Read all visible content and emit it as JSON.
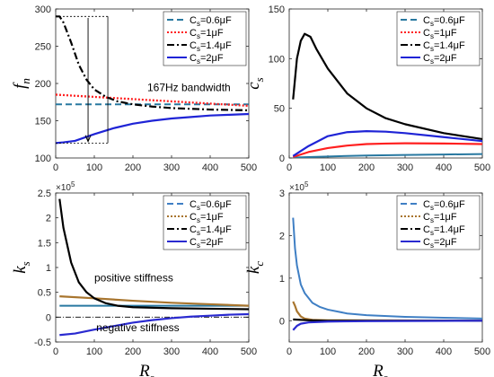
{
  "legend": [
    {
      "base": "C",
      "sub": "s",
      "mid": "=0.6",
      "greek": "μ",
      "unit_suffix": "F",
      "unit_base": "=0.6",
      "plain": true
    },
    {
      "base": "C",
      "sub": "s",
      "mid": "=1",
      "greek": "μ",
      "unit_suffix": "F"
    },
    {
      "base": "C",
      "sub": "s",
      "mid": "=1.4",
      "greek": "μ",
      "unit_suffix": "F"
    },
    {
      "base": "C",
      "sub": "s",
      "mid": "=2",
      "greek": "μ",
      "unit_suffix": "F"
    }
  ],
  "colors": {
    "s06_a": "#2878a0",
    "s1_a": "#ff2020",
    "s14": "#000000",
    "s2": "#1f24d6",
    "s06_c": "#3f7fc4",
    "s1_c": "#a8752e",
    "s2_c_bottom": "#2a2ad0"
  },
  "chart_data": [
    {
      "type": "line",
      "id": "fn",
      "ylabel": "f",
      "ylabel_sub": "n",
      "xlabel": "",
      "xlim": [
        0,
        500
      ],
      "ylim": [
        100,
        300
      ],
      "xticks": [
        0,
        100,
        200,
        300,
        400,
        500
      ],
      "yticks": [
        100,
        150,
        200,
        250,
        300
      ],
      "legend_placement": "top-right",
      "annotation": "167Hz bandwidth",
      "series": [
        {
          "name": "Cs=0.6μF",
          "style": "dash",
          "x": [
            0,
            500
          ],
          "y": [
            172,
            172
          ]
        },
        {
          "name": "Cs=1μF",
          "style": "dot",
          "x": [
            0,
            100,
            200,
            300,
            400,
            500
          ],
          "y": [
            185,
            182,
            179,
            176,
            173,
            170
          ]
        },
        {
          "name": "Cs=1.4μF",
          "style": "dashdot",
          "x": [
            0,
            10,
            20,
            40,
            60,
            80,
            100,
            130,
            160,
            200,
            250,
            300,
            400,
            500
          ],
          "y": [
            290,
            290,
            282,
            255,
            225,
            205,
            192,
            182,
            176,
            172,
            169,
            167,
            165,
            164
          ]
        },
        {
          "name": "Cs=2μF",
          "style": "solid",
          "x": [
            0,
            20,
            50,
            100,
            150,
            200,
            250,
            300,
            350,
            400,
            450,
            500
          ],
          "y": [
            120,
            121,
            123,
            132,
            140,
            146,
            150,
            153,
            155,
            157,
            158,
            159
          ]
        }
      ]
    },
    {
      "type": "line",
      "id": "cs",
      "ylabel": "c",
      "ylabel_sub": "s",
      "xlabel": "",
      "xlim": [
        0,
        500
      ],
      "ylim": [
        0,
        150
      ],
      "xticks": [
        0,
        100,
        200,
        300,
        400,
        500
      ],
      "yticks": [
        0,
        50,
        100,
        150
      ],
      "legend_placement": "top-right",
      "series": [
        {
          "name": "Cs=0.6μF",
          "x": [
            10,
            100,
            200,
            300,
            400,
            500
          ],
          "y": [
            0.5,
            1.5,
            2.5,
            3,
            3.5,
            4
          ]
        },
        {
          "name": "Cs=1μF",
          "x": [
            10,
            50,
            100,
            150,
            200,
            250,
            300,
            400,
            500
          ],
          "y": [
            1,
            6,
            10,
            12.5,
            14,
            14.5,
            14.8,
            14.6,
            14
          ]
        },
        {
          "name": "Cs=1.4μF",
          "x": [
            10,
            20,
            30,
            40,
            55,
            70,
            100,
            150,
            200,
            250,
            300,
            400,
            500
          ],
          "y": [
            59,
            100,
            118,
            125,
            122,
            110,
            90,
            65,
            50,
            40,
            34,
            25,
            19
          ]
        },
        {
          "name": "Cs=2μF",
          "x": [
            10,
            50,
            100,
            150,
            200,
            250,
            300,
            400,
            500
          ],
          "y": [
            2,
            12,
            22,
            26,
            27,
            26.5,
            25,
            21,
            17
          ]
        }
      ]
    },
    {
      "type": "line",
      "id": "ks",
      "ylabel": "k",
      "ylabel_sub": "s",
      "xlabel": "R",
      "xlabel_sub": "s",
      "multiplier": "×10",
      "multiplier_exp": "5",
      "xlim": [
        0,
        500
      ],
      "ylim": [
        -0.5,
        2.5
      ],
      "xticks": [
        0,
        100,
        200,
        300,
        400,
        500
      ],
      "yticks": [
        -0.5,
        0,
        0.5,
        1,
        1.5,
        2,
        2.5
      ],
      "legend_placement": "top-right",
      "annotations": [
        "positive stiffness",
        "negative stiffness"
      ],
      "series": [
        {
          "name": "Cs=0.6μF",
          "x": [
            10,
            500
          ],
          "y": [
            0.23,
            0.23
          ]
        },
        {
          "name": "Cs=1μF",
          "x": [
            10,
            100,
            200,
            300,
            400,
            500
          ],
          "y": [
            0.42,
            0.38,
            0.33,
            0.29,
            0.26,
            0.23
          ]
        },
        {
          "name": "Cs=1.4μF",
          "x": [
            10,
            20,
            40,
            60,
            80,
            100,
            130,
            160,
            200,
            300,
            400,
            500
          ],
          "y": [
            2.38,
            1.8,
            1.1,
            0.7,
            0.5,
            0.38,
            0.28,
            0.23,
            0.2,
            0.18,
            0.17,
            0.16
          ]
        },
        {
          "name": "Cs=2μF",
          "x": [
            10,
            50,
            100,
            150,
            200,
            250,
            300,
            350,
            400,
            450,
            500
          ],
          "y": [
            -0.36,
            -0.33,
            -0.25,
            -0.18,
            -0.11,
            -0.06,
            -0.02,
            0.01,
            0.03,
            0.05,
            0.06
          ]
        }
      ]
    },
    {
      "type": "line",
      "id": "kc",
      "ylabel": "k",
      "ylabel_sub": "c",
      "xlabel": "R",
      "xlabel_sub": "s",
      "multiplier": "×10",
      "multiplier_exp": "5",
      "xlim": [
        0,
        500
      ],
      "ylim": [
        -0.5,
        3
      ],
      "xticks": [
        0,
        100,
        200,
        300,
        400,
        500
      ],
      "yticks": [
        0,
        1,
        2,
        3
      ],
      "legend_placement": "top-right",
      "series": [
        {
          "name": "Cs=0.6μF",
          "x": [
            10,
            15,
            20,
            30,
            40,
            60,
            80,
            100,
            150,
            200,
            300,
            400,
            500
          ],
          "y": [
            2.42,
            1.7,
            1.3,
            0.85,
            0.65,
            0.42,
            0.32,
            0.26,
            0.17,
            0.13,
            0.09,
            0.07,
            0.05
          ]
        },
        {
          "name": "Cs=1μF",
          "x": [
            10,
            15,
            20,
            30,
            40,
            60,
            100,
            200,
            500
          ],
          "y": [
            0.45,
            0.35,
            0.22,
            0.1,
            0.05,
            0.02,
            0.01,
            0.01,
            0.0
          ]
        },
        {
          "name": "Cs=1.4μF",
          "x": [
            10,
            50,
            100,
            200,
            500
          ],
          "y": [
            0.03,
            0.01,
            0.0,
            0.0,
            0.0
          ]
        },
        {
          "name": "Cs=2μF",
          "x": [
            10,
            20,
            30,
            50,
            100,
            200,
            500
          ],
          "y": [
            -0.22,
            -0.12,
            -0.07,
            -0.04,
            -0.02,
            -0.01,
            0.0
          ]
        }
      ]
    }
  ]
}
